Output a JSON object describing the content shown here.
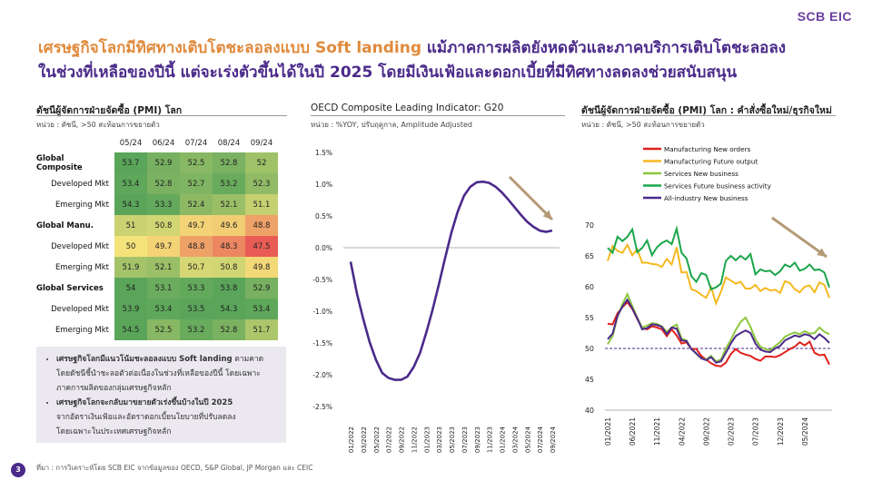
{
  "brand": "SCB EIC",
  "headline": {
    "accent": "เศรษฐกิจโลกมีทิศทางเติบโตชะลอลงแบบ Soft landing",
    "rest_line1": " แม้ภาคการผลิตยังหดตัวและภาคบริการเติบโตชะลอลง",
    "line2": "ในช่วงที่เหลือของปีนี้ แต่จะเร่งตัวขึ้นได้ในปี 2025 โดยมีเงินเฟ้อและดอกเบี้ยที่มีทิศทางลดลงช่วยสนับสนุน"
  },
  "panel1": {
    "title": "ดัชนีผู้จัดการฝ่ายจัดซื้อ (PMI) โลก",
    "unit": "หน่วย : ดัชนี, >50 สะท้อนการขยายตัว",
    "columns": [
      "05/24",
      "06/24",
      "07/24",
      "08/24",
      "09/24"
    ],
    "rows": [
      {
        "label": "Global Composite",
        "bold": true,
        "values": [
          "53.7",
          "52.9",
          "52.5",
          "52.8",
          "52"
        ]
      },
      {
        "label": "Developed Mkt",
        "bold": false,
        "values": [
          "53.4",
          "52.8",
          "52.7",
          "53.2",
          "52.3"
        ]
      },
      {
        "label": "Emerging Mkt",
        "bold": false,
        "values": [
          "54.3",
          "53.3",
          "52.4",
          "52.1",
          "51.1"
        ]
      },
      {
        "label": "Global Manu.",
        "bold": true,
        "values": [
          "51",
          "50.8",
          "49.7",
          "49.6",
          "48.8"
        ]
      },
      {
        "label": "Developed Mkt",
        "bold": false,
        "values": [
          "50",
          "49.7",
          "48.8",
          "48.3",
          "47.5"
        ]
      },
      {
        "label": "Emerging Mkt",
        "bold": false,
        "values": [
          "51.9",
          "52.1",
          "50.7",
          "50.8",
          "49.8"
        ]
      },
      {
        "label": "Global Services",
        "bold": true,
        "values": [
          "54",
          "53.1",
          "53.3",
          "53.8",
          "52.9"
        ]
      },
      {
        "label": "Developed Mkt",
        "bold": false,
        "values": [
          "53.9",
          "53.4",
          "53.5",
          "54.3",
          "53.4"
        ]
      },
      {
        "label": "Emerging Mkt",
        "bold": false,
        "values": [
          "54.5",
          "52.5",
          "53.2",
          "52.8",
          "51.7"
        ]
      }
    ],
    "colors": {
      "high": "#5aa55a",
      "mid": "#f4e37a",
      "low": "#e85c55"
    }
  },
  "notes": [
    {
      "bold": "เศรษฐกิจโลกมีแนวโน้มชะลอลงแบบ Soft landing",
      "rest": " ตามคาด",
      "line2": "โดยดัชนีชี้นำชะลอตัวต่อเนื่องในช่วงที่เหลือของปีนี้ โดยเฉพาะ",
      "line3": "ภาคการผลิตของกลุ่มเศรษฐกิจหลัก"
    },
    {
      "bold": "เศรษฐกิจโลกจะกลับมาขยายตัวเร่งขึ้นบ้างในปี 2025",
      "rest": "",
      "line2": "จากอัตราเงินเฟ้อและอัตราดอกเบี้ยนโยบายที่ปรับลดลง",
      "line3": "โดยเฉพาะในประเทศเศรษฐกิจหลัก"
    }
  ],
  "panel2": {
    "title": "OECD Composite Leading Indicator: G20",
    "unit": "หน่วย : %YOY, ปรับฤดูกาล, Amplitude Adjusted"
  },
  "panel3": {
    "title": "ดัชนีผู้จัดการฝ่ายจัดซื้อ (PMI) โลก : คำสั่งซื้อใหม่/ธุรกิจใหม่",
    "unit": "หน่วย : ดัชนี, >50 สะท้อนการขยายตัว"
  },
  "footer": "ที่มา : การวิเคราะห์โดย SCB EIC จากข้อมูลของ OECD, S&P Global, JP Morgan และ CEIC",
  "page_number": "3",
  "chart_data": [
    {
      "type": "line",
      "title": "OECD Composite Leading Indicator: G20",
      "x": [
        "01/2022",
        "02/2022",
        "03/2022",
        "04/2022",
        "05/2022",
        "06/2022",
        "07/2022",
        "08/2022",
        "09/2022",
        "10/2022",
        "11/2022",
        "12/2022",
        "01/2023",
        "02/2023",
        "03/2023",
        "04/2023",
        "05/2023",
        "06/2023",
        "07/2023",
        "08/2023",
        "09/2023",
        "10/2023",
        "11/2023",
        "12/2023",
        "01/2024",
        "02/2024",
        "03/2024",
        "04/2024",
        "05/2024",
        "06/2024",
        "07/2024",
        "08/2024",
        "09/2024"
      ],
      "x_ticks": [
        "01/2022",
        "03/2022",
        "05/2022",
        "07/2022",
        "09/2022",
        "11/2022",
        "01/2023",
        "03/2023",
        "05/2023",
        "07/2023",
        "09/2023",
        "11/2023",
        "01/2024",
        "03/2024",
        "05/2024",
        "07/2024",
        "09/2024"
      ],
      "series": [
        {
          "values": [
            -0.22,
            -0.72,
            -1.12,
            -1.48,
            -1.76,
            -1.97,
            -2.05,
            -2.08,
            -2.08,
            -2.03,
            -1.88,
            -1.66,
            -1.34,
            -0.98,
            -0.58,
            -0.16,
            0.24,
            0.57,
            0.82,
            0.96,
            1.03,
            1.04,
            1.02,
            0.96,
            0.87,
            0.76,
            0.64,
            0.52,
            0.41,
            0.33,
            0.27,
            0.25,
            0.27
          ],
          "color": "#4b2a8a"
        }
      ],
      "ylim": [
        -2.5,
        1.5
      ],
      "y_ticks": [
        "-2.5%",
        "-2.0%",
        "-1.5%",
        "-1.0%",
        "-0.5%",
        "0.0%",
        "0.5%",
        "1.0%",
        "1.5%"
      ],
      "grid": false
    },
    {
      "type": "line",
      "title": "ดัชนีผู้จัดการฝ่ายจัดซื้อ (PMI) โลก : คำสั่งซื้อใหม่/ธุรกิจใหม่",
      "x_ticks": [
        "01/2021",
        "06/2021",
        "11/2021",
        "04/2022",
        "09/2022",
        "02/2023",
        "07/2023",
        "12/2023",
        "05/2024"
      ],
      "ylim": [
        40,
        70
      ],
      "y_ticks": [
        "40",
        "45",
        "50",
        "55",
        "60",
        "65",
        "70"
      ],
      "reference_line": 50,
      "legend": "top-left",
      "series": [
        {
          "name": "Manufacturing New orders",
          "color": "#e0201b",
          "values": [
            54,
            53.9,
            55.7,
            56.7,
            57.5,
            56.4,
            54.8,
            53.3,
            53.1,
            53.6,
            53.4,
            53.1,
            52,
            53.1,
            52.1,
            50.8,
            51,
            49.9,
            49.9,
            48.8,
            48.2,
            47.6,
            47.2,
            47.1,
            47.7,
            49.1,
            49.9,
            49.3,
            49,
            48.8,
            48.3,
            48,
            48.7,
            48.7,
            48.6,
            48.9,
            49.4,
            49.9,
            50.3,
            51,
            50.5,
            51.1,
            49.3,
            48.9,
            49,
            47.4
          ]
        },
        {
          "name": "Manufacturing Future output",
          "color": "#f5b820",
          "values": [
            64.2,
            66.6,
            65.8,
            65.5,
            66.8,
            65.1,
            66.1,
            63.9,
            63.9,
            63.7,
            63.6,
            63.2,
            64.5,
            63.6,
            66.4,
            62.3,
            62.4,
            59.6,
            59.3,
            58.7,
            58.2,
            59.9,
            57.3,
            59.2,
            61.5,
            61,
            60.5,
            60.8,
            59.7,
            59.7,
            60.3,
            59.3,
            59.8,
            59.4,
            59.5,
            59,
            60.9,
            60.6,
            59.6,
            59.1,
            60,
            60.2,
            59.1,
            60.7,
            60.3,
            58.2
          ]
        },
        {
          "name": "Services New business",
          "color": "#8dc63f",
          "values": [
            50.7,
            52,
            55.1,
            57.2,
            58.8,
            56.9,
            55,
            53.4,
            53.7,
            54.1,
            54,
            53.6,
            52.7,
            53.4,
            53.9,
            51.6,
            51.3,
            49.9,
            49.1,
            48.4,
            48.2,
            48.8,
            47.9,
            48.2,
            50,
            51.4,
            53,
            54.3,
            55,
            53.5,
            51.5,
            50.3,
            49.9,
            49.7,
            50.4,
            51,
            51.9,
            52.3,
            52.6,
            52.3,
            52.8,
            52.4,
            52.5,
            53.4,
            52.7,
            52.3
          ]
        },
        {
          "name": "Services Future business activity",
          "color": "#1aa64a",
          "values": [
            66.3,
            65.5,
            68.1,
            67.4,
            68.1,
            69.3,
            65.6,
            66.3,
            67.5,
            65.1,
            66.4,
            67.1,
            67.5,
            66.9,
            69.4,
            65.5,
            64.6,
            61.7,
            60.8,
            62.2,
            61.9,
            59.6,
            59.9,
            60.5,
            64.2,
            65,
            64.3,
            65,
            64.4,
            65.3,
            62,
            62.8,
            62.5,
            62.6,
            61.9,
            62.5,
            63.6,
            63.2,
            63.9,
            62.6,
            62.9,
            63.6,
            62.7,
            62.8,
            62.3,
            59.9
          ]
        },
        {
          "name": "All-industry New business",
          "color": "#4b2a8a",
          "values": [
            51.5,
            52.4,
            55.3,
            56.8,
            57.9,
            56.5,
            54.9,
            53.1,
            53.3,
            53.9,
            53.8,
            53.5,
            52.3,
            53.4,
            53.2,
            51.3,
            51.2,
            49.9,
            49.2,
            48.4,
            48.1,
            48.6,
            47.7,
            47.9,
            49.3,
            50.8,
            52,
            52.5,
            52.9,
            52.5,
            50.8,
            49.8,
            49.5,
            49.4,
            50,
            50.4,
            51.3,
            51.7,
            52.1,
            51.9,
            52.3,
            52.1,
            51.5,
            52.3,
            51.7,
            50.9
          ]
        }
      ]
    }
  ]
}
